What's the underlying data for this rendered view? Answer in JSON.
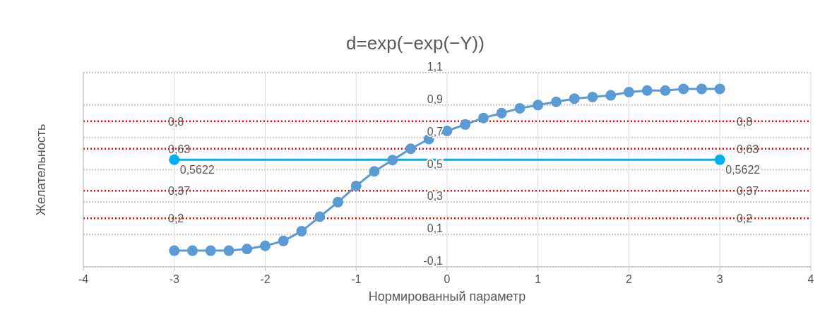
{
  "chart_data": {
    "type": "line",
    "title": "d=exp(−exp(−Y))",
    "xlabel": "Нормированный параметр",
    "ylabel": "Желательность",
    "xlim": [
      -4,
      4
    ],
    "xticks": [
      -4,
      -3,
      -2,
      -1,
      0,
      1,
      2,
      3,
      4
    ],
    "ylim": [
      -0.1,
      1.1
    ],
    "yticks": [
      {
        "value": -0.1,
        "label": "-0,1"
      },
      {
        "value": 0.1,
        "label": "0,1"
      },
      {
        "value": 0.3,
        "label": "0,3"
      },
      {
        "value": 0.5,
        "label": "0,5"
      },
      {
        "value": 0.7,
        "label": "0,7"
      },
      {
        "value": 0.9,
        "label": "0,9"
      },
      {
        "value": 1.1,
        "label": "1,1"
      }
    ],
    "grid": true,
    "marker": "circle",
    "series": [
      {
        "color": "#5b9bd5",
        "x": [
          -3,
          -2.8,
          -2.6,
          -2.4,
          -2.2,
          -2,
          -1.8,
          -1.6,
          -1.4,
          -1.2,
          -1,
          -0.8,
          -0.6,
          -0.4,
          -0.2,
          0,
          0.2,
          0.4,
          0.6,
          0.8,
          1,
          1.2,
          1.4,
          1.6,
          1.8,
          2,
          2.2,
          2.4,
          2.6,
          2.8,
          3
        ],
        "values": [
          0,
          0,
          0,
          0,
          0.01,
          0.03,
          0.06,
          0.12,
          0.21,
          0.3,
          0.4,
          0.49,
          0.56,
          0.63,
          0.69,
          0.74,
          0.78,
          0.82,
          0.85,
          0.88,
          0.9,
          0.92,
          0.94,
          0.95,
          0.96,
          0.98,
          0.99,
          0.99,
          1,
          1,
          1
        ]
      },
      {
        "color": "#00b0f0",
        "x": [
          -3,
          3
        ],
        "values": [
          0.5622,
          0.5622
        ],
        "value_labels": [
          "0,5622",
          "0,5622"
        ]
      }
    ],
    "ref_lines": [
      {
        "axis": "y",
        "value": 0.8,
        "label": "0,8",
        "color": "#ff0000",
        "line_style": "dotted"
      },
      {
        "axis": "y",
        "value": 0.63,
        "label": "0,63",
        "color": "#ff0000",
        "line_style": "dotted"
      },
      {
        "axis": "y",
        "value": 0.37,
        "label": "0,37",
        "color": "#ff0000",
        "line_style": "dotted"
      },
      {
        "axis": "y",
        "value": 0.2,
        "label": "0,2",
        "color": "#ff0000",
        "line_style": "dotted"
      }
    ]
  }
}
